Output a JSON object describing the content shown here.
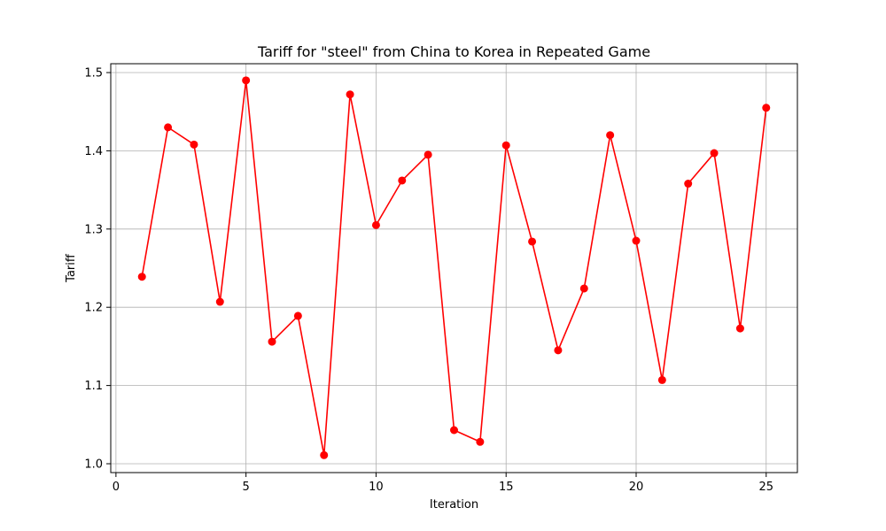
{
  "chart_data": {
    "type": "line",
    "title": "Tariff for \"steel\" from China to Korea in Repeated Game",
    "xlabel": "Iteration",
    "ylabel": "Tariff",
    "xlim": [
      -0.2,
      26.2
    ],
    "ylim": [
      0.9887,
      1.5113
    ],
    "x_ticks": [
      0,
      5,
      10,
      15,
      20,
      25
    ],
    "y_ticks": [
      1.0,
      1.1,
      1.2,
      1.3,
      1.4,
      1.5
    ],
    "x_tick_labels": [
      "0",
      "5",
      "10",
      "15",
      "20",
      "25"
    ],
    "y_tick_labels": [
      "1.0",
      "1.1",
      "1.2",
      "1.3",
      "1.4",
      "1.5"
    ],
    "grid": true,
    "legend": "none",
    "line_color": "#ff0000",
    "marker": "circle",
    "x": [
      1,
      2,
      3,
      4,
      5,
      6,
      7,
      8,
      9,
      10,
      11,
      12,
      13,
      14,
      15,
      16,
      17,
      18,
      19,
      20,
      21,
      22,
      23,
      24,
      25
    ],
    "y": [
      1.239,
      1.43,
      1.408,
      1.207,
      1.49,
      1.156,
      1.189,
      1.011,
      1.472,
      1.305,
      1.362,
      1.395,
      1.043,
      1.028,
      1.407,
      1.284,
      1.145,
      1.224,
      1.42,
      1.285,
      1.107,
      1.358,
      1.397,
      1.173,
      1.455
    ]
  }
}
